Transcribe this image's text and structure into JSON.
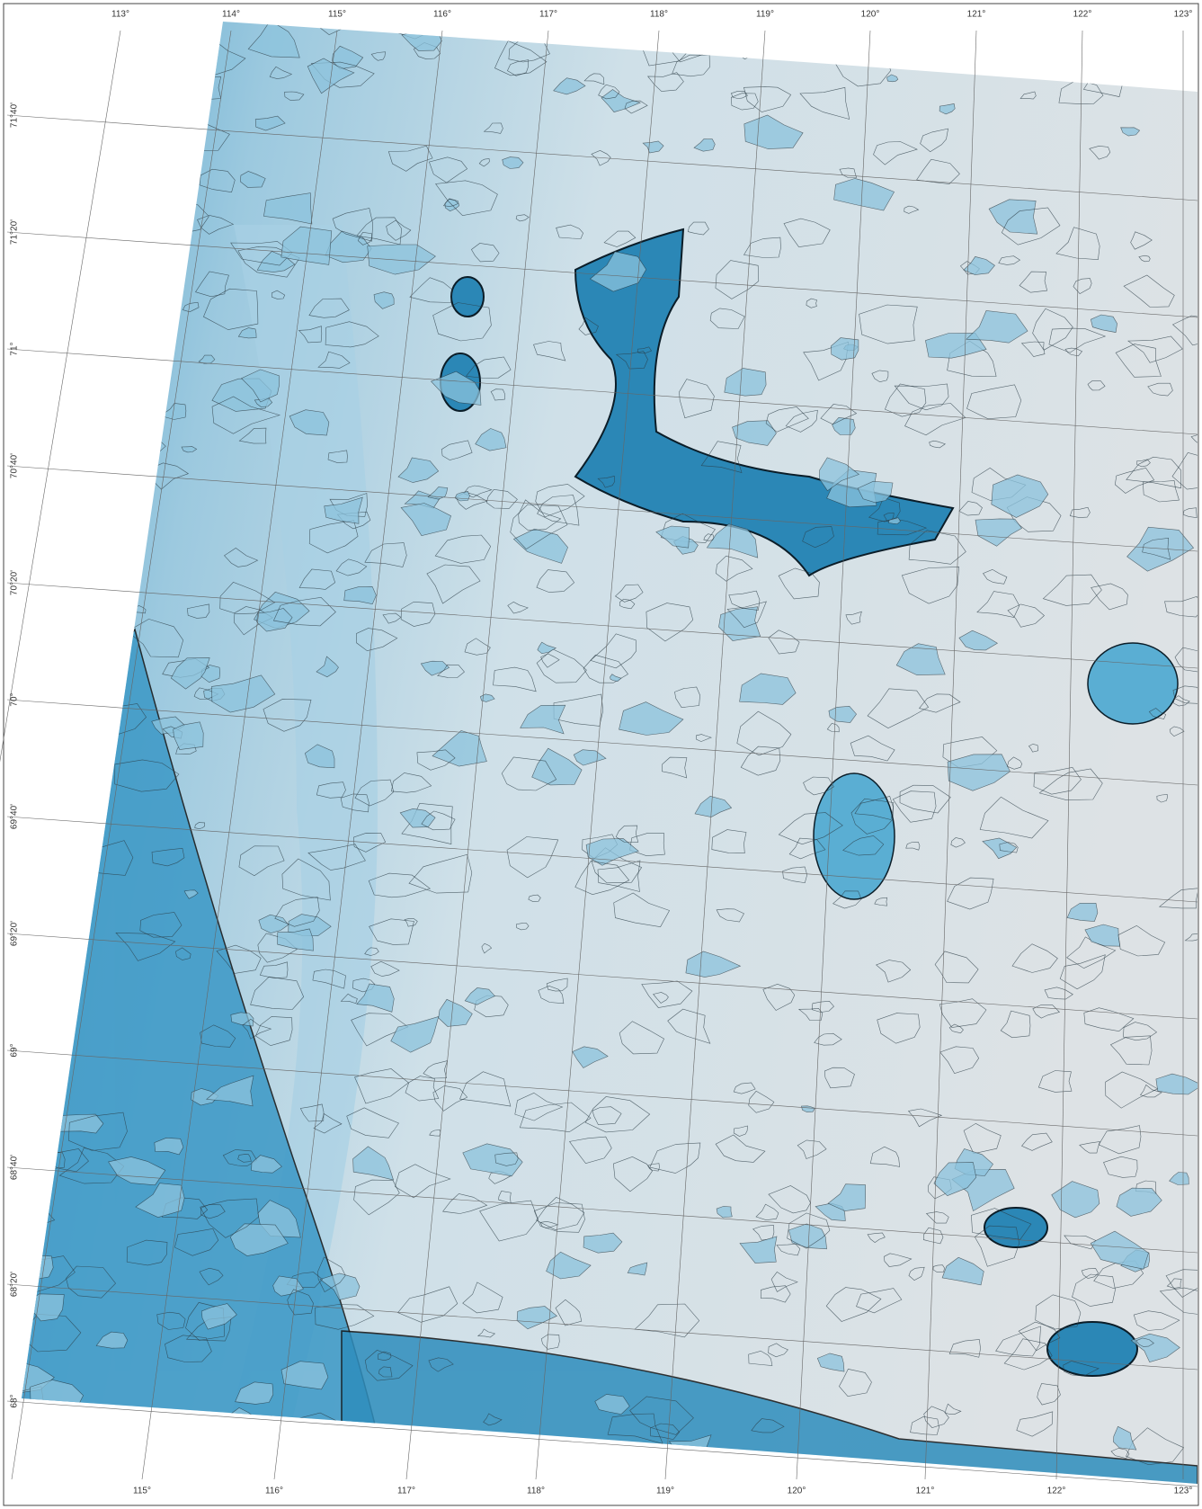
{
  "top_labels": [
    "113°",
    "114°",
    "115°",
    "116°",
    "117°",
    "118°",
    "119°",
    "120°",
    "121°",
    "122°",
    "123°"
  ],
  "bottom_labels": [
    "115°",
    "116°",
    "117°",
    "118°",
    "119°",
    "120°",
    "121°",
    "122°",
    "123°"
  ],
  "left_labels": [
    "71°40'",
    "71°20'",
    "71°",
    "70°40'",
    "70°20'",
    "70°",
    "69°40'",
    "69°20'",
    "69°",
    "68°40'",
    "68°20'",
    "68°"
  ]
}
